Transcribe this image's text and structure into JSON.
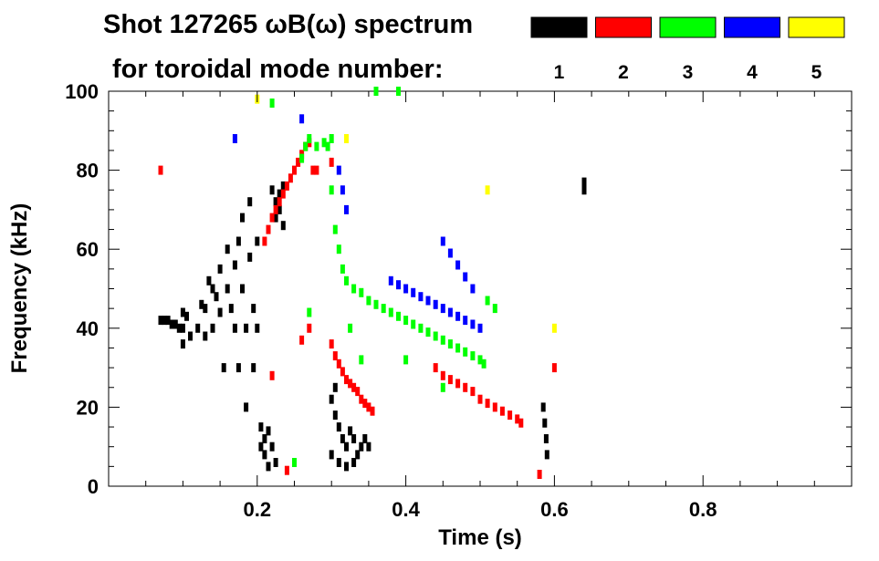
{
  "chart_data": {
    "type": "scatter",
    "title_line1": "Shot 127265 ωB(ω) spectrum",
    "title_line2": "for toroidal mode number:",
    "xlabel": "Time (s)",
    "ylabel": "Frequency (kHz)",
    "xlim": [
      0.0,
      1.0
    ],
    "ylim": [
      0,
      100
    ],
    "x_ticks": [
      0.2,
      0.4,
      0.6,
      0.8
    ],
    "x_tick_labels": [
      "0.2",
      "0.4",
      "0.6",
      "0.8"
    ],
    "y_ticks": [
      0,
      20,
      40,
      60,
      80,
      100
    ],
    "y_tick_labels": [
      "0",
      "20",
      "40",
      "60",
      "80",
      "100"
    ],
    "grid": false,
    "legend_placement": "top",
    "legend": [
      {
        "label": "1",
        "color": "#000000"
      },
      {
        "label": "2",
        "color": "#ff0000"
      },
      {
        "label": "3",
        "color": "#00ff00"
      },
      {
        "label": "4",
        "color": "#0000ff"
      },
      {
        "label": "5",
        "color": "#ffff00"
      }
    ],
    "series": [
      {
        "name": "1",
        "color": "#000000",
        "points": [
          [
            0.07,
            42
          ],
          [
            0.075,
            42
          ],
          [
            0.08,
            42
          ],
          [
            0.085,
            41
          ],
          [
            0.09,
            41
          ],
          [
            0.095,
            40
          ],
          [
            0.1,
            40
          ],
          [
            0.1,
            44
          ],
          [
            0.105,
            43
          ],
          [
            0.1,
            36
          ],
          [
            0.11,
            38
          ],
          [
            0.12,
            40
          ],
          [
            0.125,
            46
          ],
          [
            0.13,
            45
          ],
          [
            0.13,
            38
          ],
          [
            0.135,
            52
          ],
          [
            0.14,
            50
          ],
          [
            0.14,
            40
          ],
          [
            0.145,
            48
          ],
          [
            0.15,
            55
          ],
          [
            0.15,
            44
          ],
          [
            0.155,
            30
          ],
          [
            0.16,
            60
          ],
          [
            0.16,
            50
          ],
          [
            0.165,
            45
          ],
          [
            0.17,
            56
          ],
          [
            0.17,
            40
          ],
          [
            0.175,
            62
          ],
          [
            0.175,
            30
          ],
          [
            0.18,
            68
          ],
          [
            0.18,
            50
          ],
          [
            0.185,
            40
          ],
          [
            0.185,
            20
          ],
          [
            0.19,
            72
          ],
          [
            0.19,
            58
          ],
          [
            0.195,
            45
          ],
          [
            0.195,
            30
          ],
          [
            0.2,
            62
          ],
          [
            0.2,
            40
          ],
          [
            0.205,
            15
          ],
          [
            0.205,
            10
          ],
          [
            0.21,
            12
          ],
          [
            0.21,
            8
          ],
          [
            0.215,
            5
          ],
          [
            0.215,
            14
          ],
          [
            0.22,
            10
          ],
          [
            0.225,
            6
          ],
          [
            0.22,
            75
          ],
          [
            0.225,
            72
          ],
          [
            0.23,
            70
          ],
          [
            0.23,
            74
          ],
          [
            0.235,
            76
          ],
          [
            0.225,
            68
          ],
          [
            0.235,
            66
          ],
          [
            0.3,
            22
          ],
          [
            0.305,
            18
          ],
          [
            0.31,
            15
          ],
          [
            0.315,
            12
          ],
          [
            0.32,
            10
          ],
          [
            0.325,
            14
          ],
          [
            0.33,
            12
          ],
          [
            0.335,
            8
          ],
          [
            0.34,
            10
          ],
          [
            0.345,
            12
          ],
          [
            0.35,
            10
          ],
          [
            0.3,
            8
          ],
          [
            0.31,
            6
          ],
          [
            0.32,
            5
          ],
          [
            0.33,
            6
          ],
          [
            0.305,
            25
          ],
          [
            0.585,
            20
          ],
          [
            0.587,
            16
          ],
          [
            0.589,
            12
          ],
          [
            0.59,
            8
          ],
          [
            0.64,
            77
          ],
          [
            0.64,
            75
          ]
        ]
      },
      {
        "name": "2",
        "color": "#ff0000",
        "points": [
          [
            0.21,
            62
          ],
          [
            0.215,
            65
          ],
          [
            0.22,
            68
          ],
          [
            0.225,
            70
          ],
          [
            0.23,
            72
          ],
          [
            0.235,
            74
          ],
          [
            0.24,
            76
          ],
          [
            0.245,
            78
          ],
          [
            0.25,
            80
          ],
          [
            0.255,
            82
          ],
          [
            0.26,
            84
          ],
          [
            0.265,
            86
          ],
          [
            0.27,
            87
          ],
          [
            0.275,
            80
          ],
          [
            0.28,
            80
          ],
          [
            0.3,
            82
          ],
          [
            0.3,
            36
          ],
          [
            0.305,
            33
          ],
          [
            0.31,
            31
          ],
          [
            0.315,
            29
          ],
          [
            0.32,
            27
          ],
          [
            0.325,
            26
          ],
          [
            0.33,
            25
          ],
          [
            0.335,
            24
          ],
          [
            0.34,
            22
          ],
          [
            0.345,
            21
          ],
          [
            0.35,
            20
          ],
          [
            0.355,
            19
          ],
          [
            0.44,
            30
          ],
          [
            0.45,
            28
          ],
          [
            0.46,
            27
          ],
          [
            0.47,
            26
          ],
          [
            0.48,
            25
          ],
          [
            0.49,
            24
          ],
          [
            0.5,
            22
          ],
          [
            0.51,
            21
          ],
          [
            0.52,
            20
          ],
          [
            0.53,
            19
          ],
          [
            0.54,
            18
          ],
          [
            0.55,
            17
          ],
          [
            0.555,
            16
          ],
          [
            0.27,
            40
          ],
          [
            0.26,
            37
          ],
          [
            0.24,
            4
          ],
          [
            0.58,
            3
          ],
          [
            0.6,
            30
          ],
          [
            0.22,
            28
          ],
          [
            0.07,
            80
          ]
        ]
      },
      {
        "name": "3",
        "color": "#00ff00",
        "points": [
          [
            0.26,
            83
          ],
          [
            0.265,
            86
          ],
          [
            0.27,
            88
          ],
          [
            0.28,
            86
          ],
          [
            0.29,
            87
          ],
          [
            0.3,
            88
          ],
          [
            0.295,
            86
          ],
          [
            0.3,
            75
          ],
          [
            0.305,
            65
          ],
          [
            0.31,
            60
          ],
          [
            0.315,
            55
          ],
          [
            0.32,
            52
          ],
          [
            0.33,
            50
          ],
          [
            0.34,
            49
          ],
          [
            0.35,
            47
          ],
          [
            0.36,
            46
          ],
          [
            0.37,
            45
          ],
          [
            0.38,
            44
          ],
          [
            0.39,
            43
          ],
          [
            0.4,
            42
          ],
          [
            0.41,
            41
          ],
          [
            0.42,
            40
          ],
          [
            0.43,
            39
          ],
          [
            0.44,
            38
          ],
          [
            0.45,
            37
          ],
          [
            0.46,
            36
          ],
          [
            0.47,
            35
          ],
          [
            0.48,
            34
          ],
          [
            0.49,
            33
          ],
          [
            0.5,
            32
          ],
          [
            0.505,
            31
          ],
          [
            0.51,
            47
          ],
          [
            0.52,
            45
          ],
          [
            0.36,
            100
          ],
          [
            0.39,
            100
          ],
          [
            0.325,
            40
          ],
          [
            0.34,
            32
          ],
          [
            0.4,
            32
          ],
          [
            0.45,
            25
          ],
          [
            0.25,
            6
          ],
          [
            0.27,
            44
          ],
          [
            0.22,
            97
          ]
        ]
      },
      {
        "name": "4",
        "color": "#0000ff",
        "points": [
          [
            0.31,
            80
          ],
          [
            0.315,
            75
          ],
          [
            0.32,
            70
          ],
          [
            0.38,
            52
          ],
          [
            0.39,
            51
          ],
          [
            0.4,
            50
          ],
          [
            0.41,
            49
          ],
          [
            0.42,
            48
          ],
          [
            0.43,
            47
          ],
          [
            0.44,
            46
          ],
          [
            0.45,
            45
          ],
          [
            0.46,
            44
          ],
          [
            0.47,
            43
          ],
          [
            0.48,
            42
          ],
          [
            0.49,
            41
          ],
          [
            0.5,
            40
          ],
          [
            0.45,
            62
          ],
          [
            0.46,
            59
          ],
          [
            0.47,
            56
          ],
          [
            0.48,
            53
          ],
          [
            0.49,
            50
          ],
          [
            0.17,
            88
          ],
          [
            0.26,
            93
          ]
        ]
      },
      {
        "name": "5",
        "color": "#ffff00",
        "points": [
          [
            0.6,
            40
          ],
          [
            0.51,
            75
          ],
          [
            0.32,
            88
          ],
          [
            0.2,
            98
          ]
        ]
      }
    ]
  }
}
